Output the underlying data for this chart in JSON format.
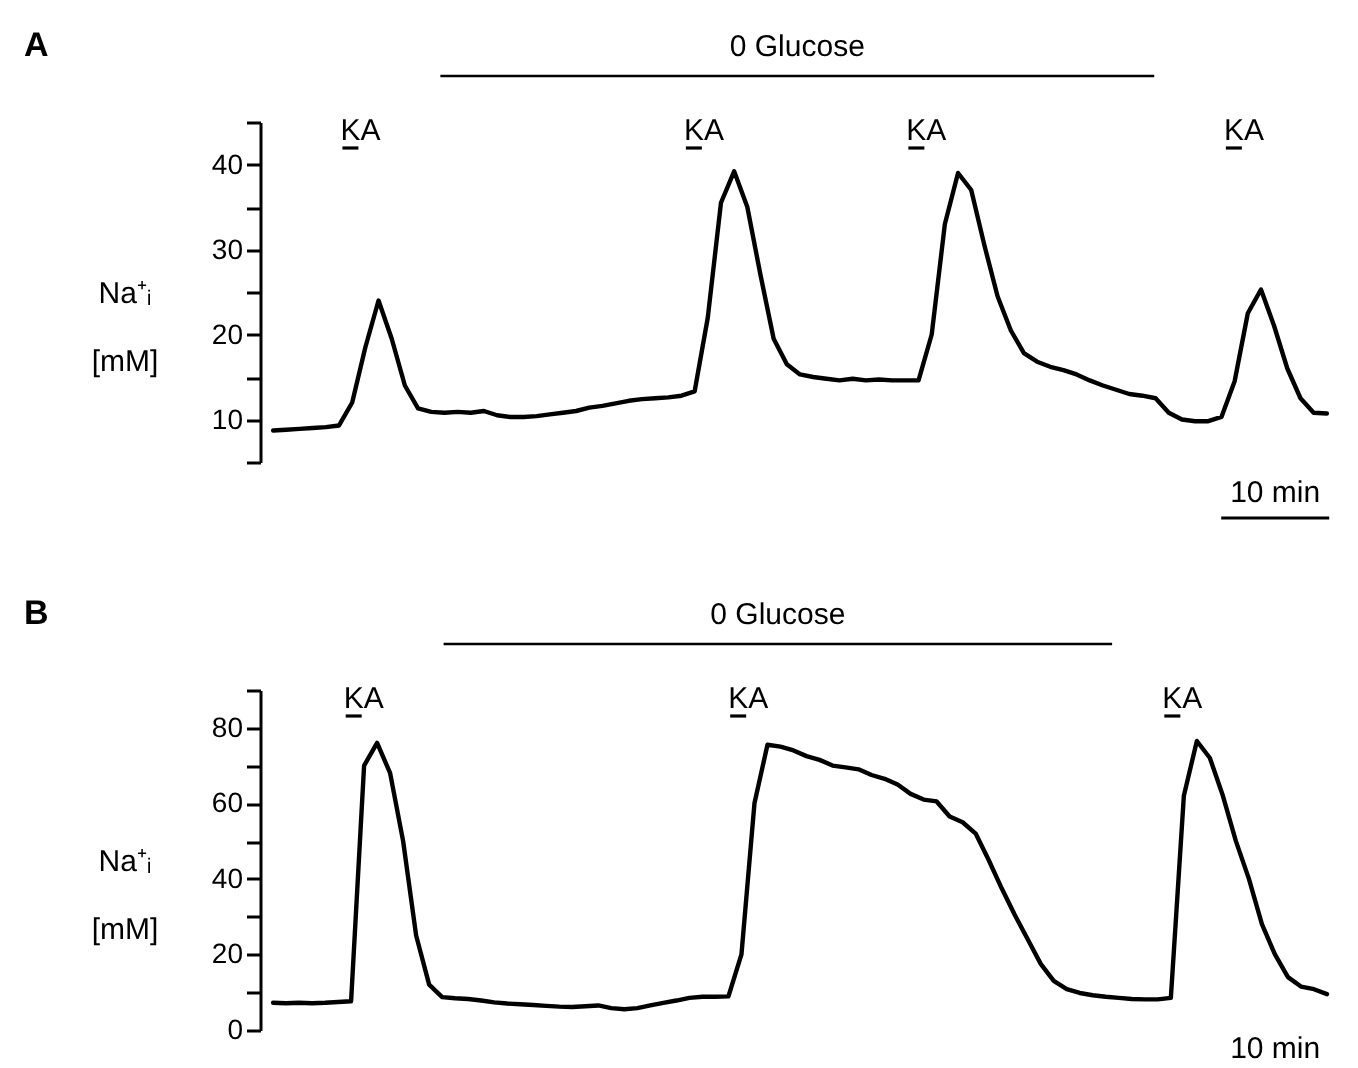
{
  "chart_data": [
    {
      "type": "line",
      "title": "A",
      "ylabel": "Na⁺ᵢ [mM]",
      "categories": [
        null,
        null,
        null,
        null,
        null,
        null,
        null,
        null,
        null,
        null,
        null,
        null,
        null,
        null,
        null,
        null,
        null,
        null,
        null,
        null,
        null,
        null,
        null,
        null,
        null,
        null,
        null,
        null,
        null,
        null,
        null,
        null,
        null,
        null,
        null,
        null,
        null,
        null,
        null,
        null,
        null,
        null,
        null,
        null,
        null,
        null,
        null,
        null,
        null,
        null,
        null,
        null,
        null,
        null,
        null,
        null,
        null,
        null,
        null,
        null,
        null,
        null,
        null,
        null,
        null,
        null,
        null,
        null,
        null,
        null,
        null,
        null,
        null,
        null,
        null,
        null,
        null,
        null,
        null,
        null,
        null
      ],
      "series": [
        {
          "color": "#000000",
          "values": [
            8.7,
            8.8,
            8.9,
            9.0,
            9.1,
            9.3,
            12.0,
            18.5,
            24.0,
            19.5,
            14.0,
            11.3,
            10.9,
            10.8,
            10.9,
            10.8,
            11.0,
            10.5,
            10.3,
            10.3,
            10.4,
            10.6,
            10.8,
            11.0,
            11.4,
            11.6,
            11.9,
            12.2,
            12.4,
            12.5,
            12.6,
            12.8,
            13.3,
            22.0,
            35.5,
            39.2,
            35.0,
            27.0,
            19.5,
            16.5,
            15.3,
            15.0,
            14.8,
            14.6,
            14.8,
            14.6,
            14.7,
            14.6,
            14.6,
            14.6,
            20.0,
            33.0,
            39.0,
            37.0,
            30.5,
            24.5,
            20.5,
            17.8,
            16.8,
            16.2,
            15.8,
            15.3,
            14.6,
            14.0,
            13.5,
            13.0,
            12.8,
            12.5,
            10.8,
            10.0,
            9.8,
            9.8,
            10.3,
            14.5,
            22.5,
            25.3,
            21.0,
            16.0,
            12.5,
            10.8,
            10.7
          ]
        }
      ],
      "ylim": [
        5,
        45
      ],
      "yticks": [
        {
          "value": 5,
          "label": null
        },
        10,
        {
          "value": 15,
          "label": null
        },
        20,
        {
          "value": 25,
          "label": null
        },
        30,
        {
          "value": 35,
          "label": null
        },
        40,
        {
          "value": 45,
          "label": null
        }
      ],
      "annotations": [
        "KA",
        "KA",
        "KA",
        "KA",
        "0 Glucose",
        "10 min"
      ]
    },
    {
      "type": "line",
      "title": "B",
      "ylabel": "Na⁺ᵢ [mM]",
      "categories": [
        null,
        null,
        null,
        null,
        null,
        null,
        null,
        null,
        null,
        null,
        null,
        null,
        null,
        null,
        null,
        null,
        null,
        null,
        null,
        null,
        null,
        null,
        null,
        null,
        null,
        null,
        null,
        null,
        null,
        null,
        null,
        null,
        null,
        null,
        null,
        null,
        null,
        null,
        null,
        null,
        null,
        null,
        null,
        null,
        null,
        null,
        null,
        null,
        null,
        null,
        null,
        null,
        null,
        null,
        null,
        null,
        null,
        null,
        null,
        null,
        null,
        null,
        null,
        null,
        null,
        null,
        null,
        null,
        null,
        null,
        null,
        null,
        null,
        null,
        null,
        null,
        null,
        null,
        null,
        null,
        null,
        null
      ],
      "series": [
        {
          "color": "#000000",
          "values": [
            7.2,
            7.1,
            7.2,
            7.1,
            7.2,
            7.4,
            7.6,
            70.0,
            76.0,
            68.0,
            50.0,
            25.0,
            12.0,
            8.7,
            8.4,
            8.2,
            7.8,
            7.3,
            7.0,
            6.8,
            6.6,
            6.4,
            6.2,
            6.1,
            6.3,
            6.5,
            5.8,
            5.5,
            5.8,
            6.5,
            7.2,
            7.8,
            8.5,
            8.8,
            8.8,
            8.9,
            20.0,
            60.0,
            75.5,
            75.0,
            74.0,
            72.5,
            71.5,
            70.0,
            69.5,
            69.0,
            67.5,
            66.5,
            65.0,
            62.5,
            61.0,
            60.5,
            56.5,
            55.0,
            52.0,
            45.0,
            37.5,
            30.5,
            24.0,
            17.5,
            13.0,
            10.8,
            9.8,
            9.2,
            8.8,
            8.5,
            8.2,
            8.1,
            8.1,
            8.5,
            62.0,
            76.5,
            72.0,
            62.0,
            50.0,
            40.0,
            28.0,
            20.0,
            14.0,
            11.5,
            10.8,
            9.5
          ]
        }
      ],
      "ylim": [
        0,
        90
      ],
      "yticks": [
        0,
        {
          "value": 10,
          "label": null
        },
        20,
        {
          "value": 30,
          "label": null
        },
        40,
        {
          "value": 50,
          "label": null
        },
        60,
        {
          "value": 70,
          "label": null
        },
        80,
        {
          "value": 90,
          "label": null
        }
      ],
      "annotations": [
        "KA",
        "KA",
        "KA",
        "0 Glucose",
        "10 min"
      ]
    }
  ]
}
